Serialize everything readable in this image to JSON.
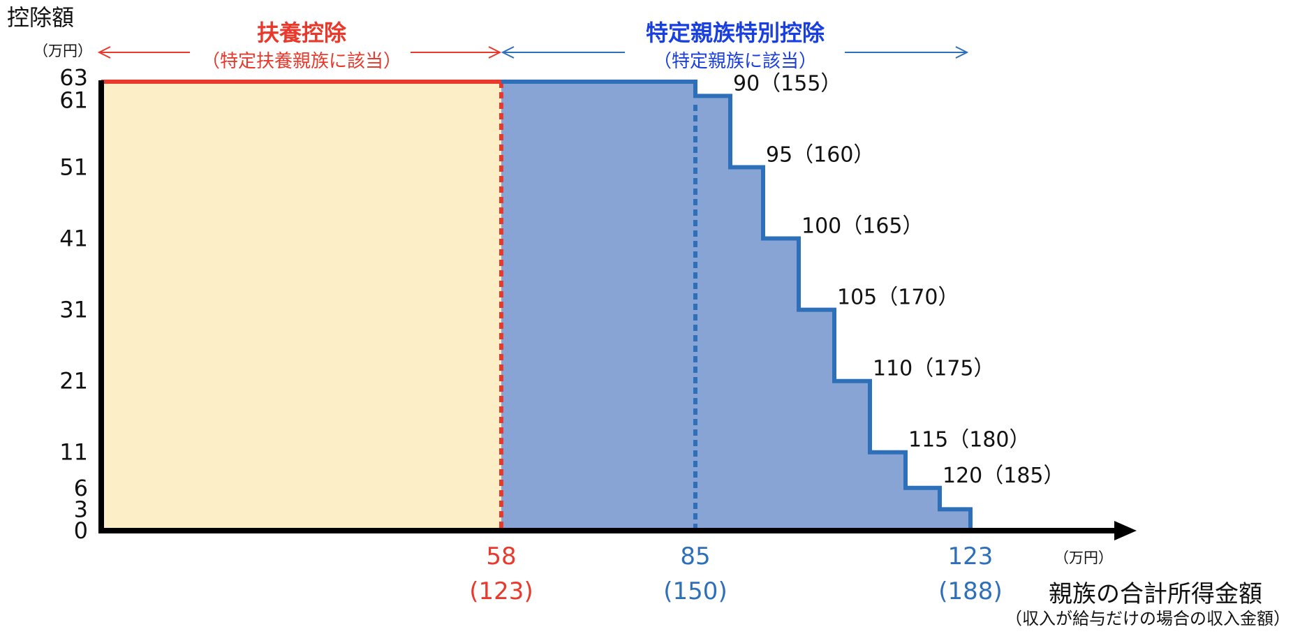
{
  "colors": {
    "dependent": "#e8392c",
    "specific": "#2e6fba",
    "specific_title": "#1a3fe0",
    "fill_dependent": "#fcefc8",
    "fill_specific": "#88a4d4",
    "axis": "#000000"
  },
  "labels": {
    "ylabel": "控除額",
    "yunit": "（万円）",
    "xunit": "（万円）",
    "xlabel": "親族の合計所得金額",
    "xsublabel": "（収入が給与だけの場合の収入金額）",
    "dep_title": "扶養控除",
    "dep_sub": "（特定扶養親族に該当）",
    "spec_title": "特定親族特別控除",
    "spec_sub": "（特定親族に該当）"
  },
  "chart_data": {
    "type": "line",
    "title": "",
    "ylabel": "控除額",
    "y_unit": "万円",
    "xlabel": "親族の合計所得金額",
    "x_unit": "万円",
    "y_ticks": [
      "0",
      "3",
      "6",
      "11",
      "21",
      "31",
      "41",
      "51",
      "61",
      "63"
    ],
    "x_ticks": [
      {
        "value": "58",
        "sub": "(123)",
        "color": "#e8392c"
      },
      {
        "value": "85",
        "sub": "(150)",
        "color": "#2e6fba"
      },
      {
        "value": "123",
        "sub": "(188)",
        "color": "#2e6fba"
      }
    ],
    "regions": [
      {
        "name": "扶養控除",
        "note": "（特定扶養親族に該当）",
        "x_range": [
          0,
          58
        ],
        "deduction": 63
      },
      {
        "name": "特定親族特別控除",
        "note": "（特定親族に該当）",
        "x_range": [
          58,
          123
        ]
      }
    ],
    "steps": [
      {
        "label": "90（155）",
        "x_end": 90,
        "y": 61
      },
      {
        "label": "95（160）",
        "x_end": 95,
        "y": 51
      },
      {
        "label": "100（165）",
        "x_end": 100,
        "y": 41
      },
      {
        "label": "105（170）",
        "x_end": 105,
        "y": 31
      },
      {
        "label": "110（175）",
        "x_end": 110,
        "y": 21
      },
      {
        "label": "115（180）",
        "x_end": 115,
        "y": 11
      },
      {
        "label": "120（185）",
        "x_end": 120,
        "y": 6
      },
      {
        "label": "",
        "x_end": 123,
        "y": 3
      }
    ],
    "series": [
      {
        "x": [
          0,
          58,
          85,
          85,
          90,
          90,
          95,
          95,
          100,
          100,
          105,
          105,
          110,
          110,
          115,
          115,
          120,
          120,
          123,
          123,
          131
        ],
        "y": [
          63,
          63,
          63,
          61,
          61,
          51,
          51,
          41,
          41,
          31,
          31,
          21,
          21,
          11,
          11,
          6,
          6,
          3,
          3,
          0,
          0
        ]
      }
    ],
    "xlim": [
      0,
      150
    ],
    "ylim": [
      0,
      63
    ]
  }
}
